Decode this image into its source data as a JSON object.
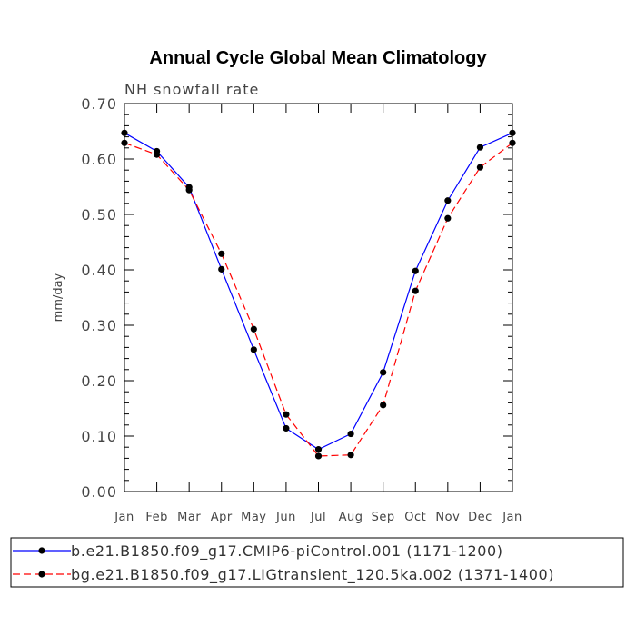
{
  "chart_data": {
    "type": "line",
    "title": "Annual Cycle Global Mean Climatology",
    "subtitle": "NH snowfall rate",
    "ylabel": "mm/day",
    "xlabel": "",
    "categories": [
      "Jan",
      "Feb",
      "Mar",
      "Apr",
      "May",
      "Jun",
      "Jul",
      "Aug",
      "Sep",
      "Oct",
      "Nov",
      "Dec",
      "Jan"
    ],
    "ylim": [
      0.0,
      0.7
    ],
    "yticks": [
      "0.00",
      "0.10",
      "0.20",
      "0.30",
      "0.40",
      "0.50",
      "0.60",
      "0.70"
    ],
    "ytick_values": [
      0.0,
      0.1,
      0.2,
      0.3,
      0.4,
      0.5,
      0.6,
      0.7
    ],
    "grid": false,
    "legend_position": "bottom",
    "series": [
      {
        "name": "b.e21.B1850.f09_g17.CMIP6-piControl.001 (1171-1200)",
        "color": "#0000ff",
        "line_style": "solid",
        "values": [
          0.647,
          0.614,
          0.549,
          0.401,
          0.256,
          0.114,
          0.076,
          0.104,
          0.215,
          0.398,
          0.525,
          0.621,
          0.647
        ]
      },
      {
        "name": "bg.e21.B1850.f09_g17.LIGtransient_120.5ka.002 (1371-1400)",
        "color": "#ff0000",
        "line_style": "dashed",
        "values": [
          0.629,
          0.608,
          0.544,
          0.429,
          0.293,
          0.139,
          0.064,
          0.066,
          0.156,
          0.362,
          0.493,
          0.585,
          0.629
        ]
      }
    ]
  }
}
